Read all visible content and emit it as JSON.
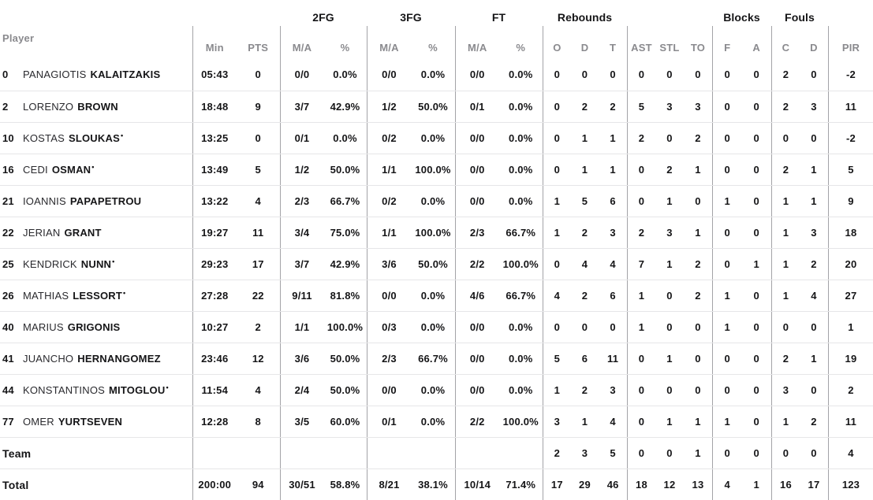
{
  "colors": {
    "text": "#151517",
    "muted": "#8a8a8e",
    "row_line": "#e6e6e8",
    "col_line": "#a3a3a7"
  },
  "starter_mark": "•",
  "header": {
    "player": "Player",
    "min": "Min",
    "pts": "PTS",
    "ma": "M/A",
    "pct": "%",
    "o": "O",
    "d": "D",
    "t": "T",
    "ast": "AST",
    "stl": "STL",
    "to": "TO",
    "f": "F",
    "a": "A",
    "c": "C",
    "d2": "D",
    "pir": "PIR",
    "groups": {
      "fg2": "2FG",
      "fg3": "3FG",
      "ft": "FT",
      "rebounds": "Rebounds",
      "blocks": "Blocks",
      "fouls": "Fouls"
    }
  },
  "rows": [
    {
      "number": "0",
      "first": "PANAGIOTIS",
      "last": "KALAITZAKIS",
      "starter": false,
      "min": "05:43",
      "pts": "0",
      "fg2_ma": "0/0",
      "fg2_pct": "0.0%",
      "fg3_ma": "0/0",
      "fg3_pct": "0.0%",
      "ft_ma": "0/0",
      "ft_pct": "0.0%",
      "reb_o": "0",
      "reb_d": "0",
      "reb_t": "0",
      "ast": "0",
      "stl": "0",
      "to": "0",
      "blk_f": "0",
      "blk_a": "0",
      "foul_c": "2",
      "foul_d": "0",
      "pir": "-2"
    },
    {
      "number": "2",
      "first": "LORENZO",
      "last": "BROWN",
      "starter": false,
      "min": "18:48",
      "pts": "9",
      "fg2_ma": "3/7",
      "fg2_pct": "42.9%",
      "fg3_ma": "1/2",
      "fg3_pct": "50.0%",
      "ft_ma": "0/1",
      "ft_pct": "0.0%",
      "reb_o": "0",
      "reb_d": "2",
      "reb_t": "2",
      "ast": "5",
      "stl": "3",
      "to": "3",
      "blk_f": "0",
      "blk_a": "0",
      "foul_c": "2",
      "foul_d": "3",
      "pir": "11"
    },
    {
      "number": "10",
      "first": "KOSTAS",
      "last": "SLOUKAS",
      "starter": true,
      "min": "13:25",
      "pts": "0",
      "fg2_ma": "0/1",
      "fg2_pct": "0.0%",
      "fg3_ma": "0/2",
      "fg3_pct": "0.0%",
      "ft_ma": "0/0",
      "ft_pct": "0.0%",
      "reb_o": "0",
      "reb_d": "1",
      "reb_t": "1",
      "ast": "2",
      "stl": "0",
      "to": "2",
      "blk_f": "0",
      "blk_a": "0",
      "foul_c": "0",
      "foul_d": "0",
      "pir": "-2"
    },
    {
      "number": "16",
      "first": "CEDI",
      "last": "OSMAN",
      "starter": true,
      "min": "13:49",
      "pts": "5",
      "fg2_ma": "1/2",
      "fg2_pct": "50.0%",
      "fg3_ma": "1/1",
      "fg3_pct": "100.0%",
      "ft_ma": "0/0",
      "ft_pct": "0.0%",
      "reb_o": "0",
      "reb_d": "1",
      "reb_t": "1",
      "ast": "0",
      "stl": "2",
      "to": "1",
      "blk_f": "0",
      "blk_a": "0",
      "foul_c": "2",
      "foul_d": "1",
      "pir": "5"
    },
    {
      "number": "21",
      "first": "IOANNIS",
      "last": "PAPAPETROU",
      "starter": false,
      "min": "13:22",
      "pts": "4",
      "fg2_ma": "2/3",
      "fg2_pct": "66.7%",
      "fg3_ma": "0/2",
      "fg3_pct": "0.0%",
      "ft_ma": "0/0",
      "ft_pct": "0.0%",
      "reb_o": "1",
      "reb_d": "5",
      "reb_t": "6",
      "ast": "0",
      "stl": "1",
      "to": "0",
      "blk_f": "1",
      "blk_a": "0",
      "foul_c": "1",
      "foul_d": "1",
      "pir": "9"
    },
    {
      "number": "22",
      "first": "JERIAN",
      "last": "GRANT",
      "starter": false,
      "min": "19:27",
      "pts": "11",
      "fg2_ma": "3/4",
      "fg2_pct": "75.0%",
      "fg3_ma": "1/1",
      "fg3_pct": "100.0%",
      "ft_ma": "2/3",
      "ft_pct": "66.7%",
      "reb_o": "1",
      "reb_d": "2",
      "reb_t": "3",
      "ast": "2",
      "stl": "3",
      "to": "1",
      "blk_f": "0",
      "blk_a": "0",
      "foul_c": "1",
      "foul_d": "3",
      "pir": "18"
    },
    {
      "number": "25",
      "first": "KENDRICK",
      "last": "NUNN",
      "starter": true,
      "min": "29:23",
      "pts": "17",
      "fg2_ma": "3/7",
      "fg2_pct": "42.9%",
      "fg3_ma": "3/6",
      "fg3_pct": "50.0%",
      "ft_ma": "2/2",
      "ft_pct": "100.0%",
      "reb_o": "0",
      "reb_d": "4",
      "reb_t": "4",
      "ast": "7",
      "stl": "1",
      "to": "2",
      "blk_f": "0",
      "blk_a": "1",
      "foul_c": "1",
      "foul_d": "2",
      "pir": "20"
    },
    {
      "number": "26",
      "first": "MATHIAS",
      "last": "LESSORT",
      "starter": true,
      "min": "27:28",
      "pts": "22",
      "fg2_ma": "9/11",
      "fg2_pct": "81.8%",
      "fg3_ma": "0/0",
      "fg3_pct": "0.0%",
      "ft_ma": "4/6",
      "ft_pct": "66.7%",
      "reb_o": "4",
      "reb_d": "2",
      "reb_t": "6",
      "ast": "1",
      "stl": "0",
      "to": "2",
      "blk_f": "1",
      "blk_a": "0",
      "foul_c": "1",
      "foul_d": "4",
      "pir": "27"
    },
    {
      "number": "40",
      "first": "MARIUS",
      "last": "GRIGONIS",
      "starter": false,
      "min": "10:27",
      "pts": "2",
      "fg2_ma": "1/1",
      "fg2_pct": "100.0%",
      "fg3_ma": "0/3",
      "fg3_pct": "0.0%",
      "ft_ma": "0/0",
      "ft_pct": "0.0%",
      "reb_o": "0",
      "reb_d": "0",
      "reb_t": "0",
      "ast": "1",
      "stl": "0",
      "to": "0",
      "blk_f": "1",
      "blk_a": "0",
      "foul_c": "0",
      "foul_d": "0",
      "pir": "1"
    },
    {
      "number": "41",
      "first": "JUANCHO",
      "last": "HERNANGOMEZ",
      "starter": false,
      "min": "23:46",
      "pts": "12",
      "fg2_ma": "3/6",
      "fg2_pct": "50.0%",
      "fg3_ma": "2/3",
      "fg3_pct": "66.7%",
      "ft_ma": "0/0",
      "ft_pct": "0.0%",
      "reb_o": "5",
      "reb_d": "6",
      "reb_t": "11",
      "ast": "0",
      "stl": "1",
      "to": "0",
      "blk_f": "0",
      "blk_a": "0",
      "foul_c": "2",
      "foul_d": "1",
      "pir": "19"
    },
    {
      "number": "44",
      "first": "KONSTANTINOS",
      "last": "MITOGLOU",
      "starter": true,
      "min": "11:54",
      "pts": "4",
      "fg2_ma": "2/4",
      "fg2_pct": "50.0%",
      "fg3_ma": "0/0",
      "fg3_pct": "0.0%",
      "ft_ma": "0/0",
      "ft_pct": "0.0%",
      "reb_o": "1",
      "reb_d": "2",
      "reb_t": "3",
      "ast": "0",
      "stl": "0",
      "to": "0",
      "blk_f": "0",
      "blk_a": "0",
      "foul_c": "3",
      "foul_d": "0",
      "pir": "2"
    },
    {
      "number": "77",
      "first": "OMER",
      "last": "YURTSEVEN",
      "starter": false,
      "min": "12:28",
      "pts": "8",
      "fg2_ma": "3/5",
      "fg2_pct": "60.0%",
      "fg3_ma": "0/1",
      "fg3_pct": "0.0%",
      "ft_ma": "2/2",
      "ft_pct": "100.0%",
      "reb_o": "3",
      "reb_d": "1",
      "reb_t": "4",
      "ast": "0",
      "stl": "1",
      "to": "1",
      "blk_f": "1",
      "blk_a": "0",
      "foul_c": "1",
      "foul_d": "2",
      "pir": "11"
    },
    {
      "label": "Team",
      "min": "",
      "pts": "",
      "fg2_ma": "",
      "fg2_pct": "",
      "fg3_ma": "",
      "fg3_pct": "",
      "ft_ma": "",
      "ft_pct": "",
      "reb_o": "2",
      "reb_d": "3",
      "reb_t": "5",
      "ast": "0",
      "stl": "0",
      "to": "1",
      "blk_f": "0",
      "blk_a": "0",
      "foul_c": "0",
      "foul_d": "0",
      "pir": "4"
    },
    {
      "label": "Total",
      "min": "200:00",
      "pts": "94",
      "fg2_ma": "30/51",
      "fg2_pct": "58.8%",
      "fg3_ma": "8/21",
      "fg3_pct": "38.1%",
      "ft_ma": "10/14",
      "ft_pct": "71.4%",
      "reb_o": "17",
      "reb_d": "29",
      "reb_t": "46",
      "ast": "18",
      "stl": "12",
      "to": "13",
      "blk_f": "4",
      "blk_a": "1",
      "foul_c": "16",
      "foul_d": "17",
      "pir": "123"
    }
  ]
}
